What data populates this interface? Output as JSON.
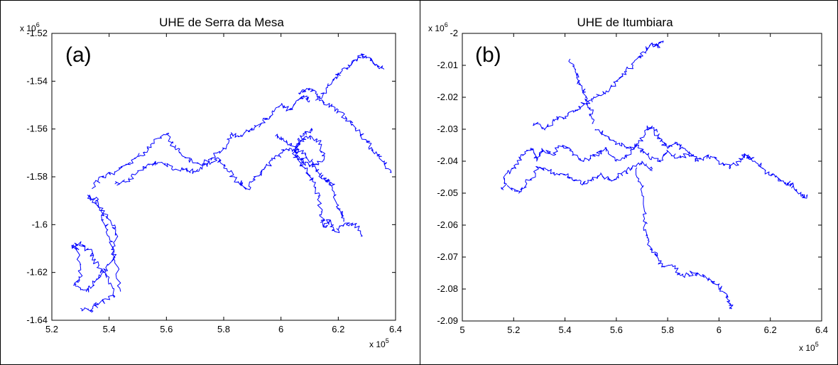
{
  "colors": {
    "line": "#0000ff",
    "frame": "#000000",
    "background": "#ffffff"
  },
  "panels": [
    {
      "panel_label": "(a)",
      "x_multiplier": "x 10",
      "x_exponent": "5",
      "y_multiplier": "x 10",
      "y_exponent": "6"
    },
    {
      "panel_label": "(b)",
      "x_multiplier": "x 10",
      "x_exponent": "5",
      "y_multiplier": "x 10",
      "y_exponent": "6"
    }
  ],
  "chart_data": [
    {
      "type": "line",
      "title": "UHE de Serra da Mesa",
      "xlabel": "",
      "ylabel": "",
      "xlim": [
        5.2,
        6.4
      ],
      "ylim": [
        -1.64,
        -1.52
      ],
      "x_ticks": [
        "5.2",
        "5.4",
        "5.6",
        "5.8",
        "6",
        "6.2",
        "6.4"
      ],
      "y_ticks": [
        "-1.52",
        "-1.54",
        "-1.56",
        "-1.58",
        "-1.6",
        "-1.62",
        "-1.64"
      ],
      "grid": false,
      "series": [
        {
          "x": [
            5.3,
            5.34,
            5.36,
            5.42,
            5.4,
            5.36,
            5.34,
            5.3,
            5.27,
            5.29,
            5.3,
            5.28,
            5.32,
            5.35,
            5.38,
            5.41,
            5.43,
            5.4,
            5.36,
            5.33,
            5.36,
            5.38,
            5.4,
            5.42,
            5.44
          ],
          "y": [
            -1.635,
            -1.636,
            -1.633,
            -1.63,
            -1.622,
            -1.618,
            -1.612,
            -1.608,
            -1.609,
            -1.61,
            -1.622,
            -1.625,
            -1.628,
            -1.624,
            -1.62,
            -1.615,
            -1.605,
            -1.598,
            -1.592,
            -1.588,
            -1.59,
            -1.598,
            -1.605,
            -1.615,
            -1.628
          ]
        },
        {
          "x": [
            5.34,
            5.38,
            5.42,
            5.46,
            5.49,
            5.52,
            5.55,
            5.6,
            5.63,
            5.67,
            5.72,
            5.76,
            5.8,
            5.83,
            5.86,
            5.9,
            5.93,
            5.96,
            6.0,
            6.03,
            6.06,
            6.08,
            6.1
          ],
          "y": [
            -1.585,
            -1.58,
            -1.578,
            -1.575,
            -1.572,
            -1.57,
            -1.566,
            -1.562,
            -1.568,
            -1.572,
            -1.575,
            -1.572,
            -1.568,
            -1.562,
            -1.563,
            -1.56,
            -1.558,
            -1.555,
            -1.55,
            -1.552,
            -1.548,
            -1.546,
            -1.548
          ]
        },
        {
          "x": [
            5.42,
            5.46,
            5.5,
            5.54,
            5.58,
            5.62,
            5.66,
            5.7,
            5.74,
            5.78,
            5.82,
            5.85,
            5.88,
            5.91,
            5.94,
            5.97,
            6.0,
            6.03,
            6.06,
            6.09,
            6.11,
            6.13,
            6.14,
            6.15,
            6.17,
            6.19,
            6.22,
            6.26,
            6.28
          ],
          "y": [
            -1.583,
            -1.582,
            -1.578,
            -1.575,
            -1.574,
            -1.576,
            -1.577,
            -1.578,
            -1.575,
            -1.572,
            -1.578,
            -1.582,
            -1.585,
            -1.58,
            -1.577,
            -1.573,
            -1.57,
            -1.568,
            -1.573,
            -1.578,
            -1.582,
            -1.588,
            -1.596,
            -1.601,
            -1.598,
            -1.603,
            -1.6,
            -1.6,
            -1.605
          ]
        },
        {
          "x": [
            5.98,
            6.01,
            6.05,
            6.09,
            6.12,
            6.14,
            6.16,
            6.18,
            6.19,
            6.21,
            6.22
          ],
          "y": [
            -1.563,
            -1.565,
            -1.568,
            -1.572,
            -1.576,
            -1.58,
            -1.582,
            -1.583,
            -1.59,
            -1.595,
            -1.598
          ]
        },
        {
          "x": [
            6.05,
            6.07,
            6.1,
            6.13,
            6.15,
            6.13,
            6.1,
            6.07,
            6.05,
            6.06,
            6.08,
            6.11
          ],
          "y": [
            -1.57,
            -1.565,
            -1.563,
            -1.565,
            -1.57,
            -1.575,
            -1.575,
            -1.573,
            -1.57,
            -1.566,
            -1.562,
            -1.56
          ]
        },
        {
          "x": [
            6.06,
            6.09,
            6.12,
            6.16,
            6.2,
            6.23,
            6.26,
            6.3,
            6.33,
            6.36,
            6.38
          ],
          "y": [
            -1.545,
            -1.543,
            -1.545,
            -1.55,
            -1.552,
            -1.556,
            -1.56,
            -1.565,
            -1.57,
            -1.574,
            -1.578
          ]
        },
        {
          "x": [
            6.12,
            6.15,
            6.18,
            6.2,
            6.23,
            6.26,
            6.28,
            6.3,
            6.33,
            6.36
          ],
          "y": [
            -1.548,
            -1.545,
            -1.54,
            -1.537,
            -1.535,
            -1.531,
            -1.529,
            -1.53,
            -1.533,
            -1.535
          ]
        }
      ]
    },
    {
      "type": "line",
      "title": "UHE de Itumbiara",
      "xlabel": "",
      "ylabel": "",
      "xlim": [
        5.0,
        6.4
      ],
      "ylim": [
        -2.09,
        -2.0
      ],
      "x_ticks": [
        "5",
        "5.2",
        "5.4",
        "5.6",
        "5.8",
        "6",
        "6.2",
        "6.4"
      ],
      "y_ticks": [
        "-2",
        "-2.01",
        "-2.02",
        "-2.03",
        "-2.04",
        "-2.05",
        "-2.06",
        "-2.07",
        "-2.08",
        "-2.09"
      ],
      "grid": false,
      "series": [
        {
          "x": [
            5.16,
            5.17,
            5.2,
            5.24,
            5.27,
            5.29,
            5.31,
            5.35,
            5.39,
            5.43,
            5.47,
            5.52,
            5.56,
            5.6,
            5.64,
            5.68,
            5.72,
            5.76,
            5.8,
            5.84,
            5.88,
            5.92,
            5.96,
            6.0,
            6.04,
            6.08,
            6.1,
            6.13
          ],
          "y": [
            -2.049,
            -2.044,
            -2.042,
            -2.038,
            -2.036,
            -2.04,
            -2.036,
            -2.038,
            -2.035,
            -2.037,
            -2.04,
            -2.038,
            -2.036,
            -2.04,
            -2.038,
            -2.035,
            -2.038,
            -2.04,
            -2.037,
            -2.039,
            -2.038,
            -2.04,
            -2.038,
            -2.04,
            -2.042,
            -2.04,
            -2.038,
            -2.039
          ]
        },
        {
          "x": [
            5.18,
            5.22,
            5.26,
            5.3,
            5.34,
            5.38,
            5.42,
            5.46,
            5.5,
            5.54,
            5.58,
            5.62,
            5.66,
            5.7,
            5.74
          ],
          "y": [
            -2.048,
            -2.05,
            -2.046,
            -2.042,
            -2.043,
            -2.044,
            -2.045,
            -2.047,
            -2.046,
            -2.044,
            -2.046,
            -2.044,
            -2.042,
            -2.04,
            -2.043
          ]
        },
        {
          "x": [
            5.28,
            5.32,
            5.36,
            5.4,
            5.44,
            5.48,
            5.52,
            5.56,
            5.6,
            5.64,
            5.68,
            5.72,
            5.74,
            5.76,
            5.78
          ],
          "y": [
            -2.028,
            -2.03,
            -2.027,
            -2.026,
            -2.024,
            -2.022,
            -2.02,
            -2.018,
            -2.015,
            -2.012,
            -2.008,
            -2.005,
            -2.003,
            -2.004,
            -2.003
          ]
        },
        {
          "x": [
            5.42,
            5.44,
            5.46,
            5.48,
            5.5,
            5.51
          ],
          "y": [
            -2.008,
            -2.012,
            -2.016,
            -2.02,
            -2.024,
            -2.028
          ]
        },
        {
          "x": [
            5.52,
            5.56,
            5.6,
            5.64,
            5.68,
            5.72,
            5.74,
            5.76,
            5.78,
            5.8,
            5.83,
            5.86,
            5.9
          ],
          "y": [
            -2.03,
            -2.032,
            -2.034,
            -2.036,
            -2.035,
            -2.03,
            -2.029,
            -2.032,
            -2.034,
            -2.036,
            -2.034,
            -2.036,
            -2.038
          ]
        },
        {
          "x": [
            5.68,
            5.7,
            5.71,
            5.72,
            5.74,
            5.76,
            5.78,
            5.82,
            5.86,
            5.9,
            5.94,
            5.98,
            6.02,
            6.04,
            6.05
          ],
          "y": [
            -2.042,
            -2.05,
            -2.058,
            -2.064,
            -2.068,
            -2.07,
            -2.073,
            -2.073,
            -2.076,
            -2.075,
            -2.076,
            -2.078,
            -2.081,
            -2.084,
            -2.086
          ]
        },
        {
          "x": [
            6.1,
            6.14,
            6.18,
            6.22,
            6.26,
            6.28,
            6.3,
            6.32,
            6.34
          ],
          "y": [
            -2.038,
            -2.04,
            -2.043,
            -2.045,
            -2.047,
            -2.047,
            -2.049,
            -2.051,
            -2.051
          ]
        }
      ]
    }
  ]
}
